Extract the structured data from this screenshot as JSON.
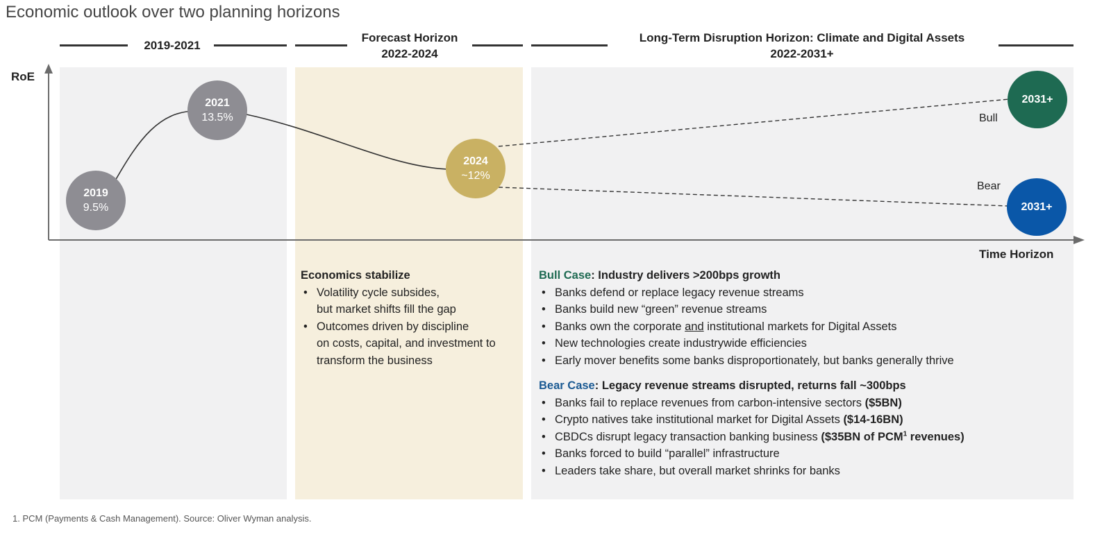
{
  "title": "Economic outlook over two planning horizons",
  "colors": {
    "panel_gray": "#f1f1f2",
    "panel_beige": "#f6efdd",
    "bubble_gray": "#8e8d93",
    "bubble_gold": "#c9b163",
    "bull_green": "#1e6a52",
    "bear_blue": "#0a57a8",
    "bull_text": "#1e6a52",
    "bear_text": "#1b5a93"
  },
  "horizons": [
    {
      "label": "2019-2021"
    },
    {
      "label_line1": "Forecast Horizon",
      "label_line2": "2022-2024"
    },
    {
      "label_line1": "Long-Term Disruption Horizon: Climate and Digital Assets",
      "label_line2": "2022-2031+"
    }
  ],
  "axes": {
    "y_label": "RoE",
    "x_label": "Time Horizon"
  },
  "points": [
    {
      "year": "2019",
      "value": "9.5%"
    },
    {
      "year": "2021",
      "value": "13.5%"
    },
    {
      "year": "2024",
      "value": "~12%"
    },
    {
      "year": "2031+",
      "scenario": "Bull"
    },
    {
      "year": "2031+",
      "scenario": "Bear"
    }
  ],
  "forecast": {
    "heading": "Economics stabilize",
    "bullets": [
      {
        "line1": "Volatility cycle subsides,",
        "line2": "but market shifts fill the gap"
      },
      {
        "line1": "Outcomes driven by discipline",
        "line2": "on costs, capital, and investment to",
        "line3": "transform the business"
      }
    ]
  },
  "bull_case": {
    "label": "Bull Case",
    "heading": ": Industry delivers >200bps growth",
    "bullets": [
      "Banks defend or replace legacy revenue streams",
      "Banks build new “green” revenue streams"
    ],
    "bullet3_pre": "Banks own the corporate ",
    "bullet3_underline": "and",
    "bullet3_post": " institutional markets for Digital Assets",
    "bullets_after": [
      "New technologies create industrywide efficiencies",
      "Early mover benefits some banks disproportionately, but banks generally thrive"
    ]
  },
  "bear_case": {
    "label": "Bear Case",
    "heading": ": Legacy revenue streams disrupted, returns fall ~300bps",
    "b1_text": "Banks fail to replace revenues from carbon-intensive sectors ",
    "b1_bold": "($5BN)",
    "b2_text": "Crypto natives take institutional market for Digital Assets ",
    "b2_bold": "($14-16BN)",
    "b3_text": "CBDCs disrupt legacy transaction banking business ",
    "b3_bold_pre": "($35BN of PCM",
    "b3_sup": "1",
    "b3_bold_post": " revenues)",
    "b4": "Banks forced to build “parallel” infrastructure",
    "b5": "Leaders take share, but overall market shrinks for banks"
  },
  "footnote": "1. PCM (Payments & Cash Management). Source: Oliver Wyman analysis."
}
